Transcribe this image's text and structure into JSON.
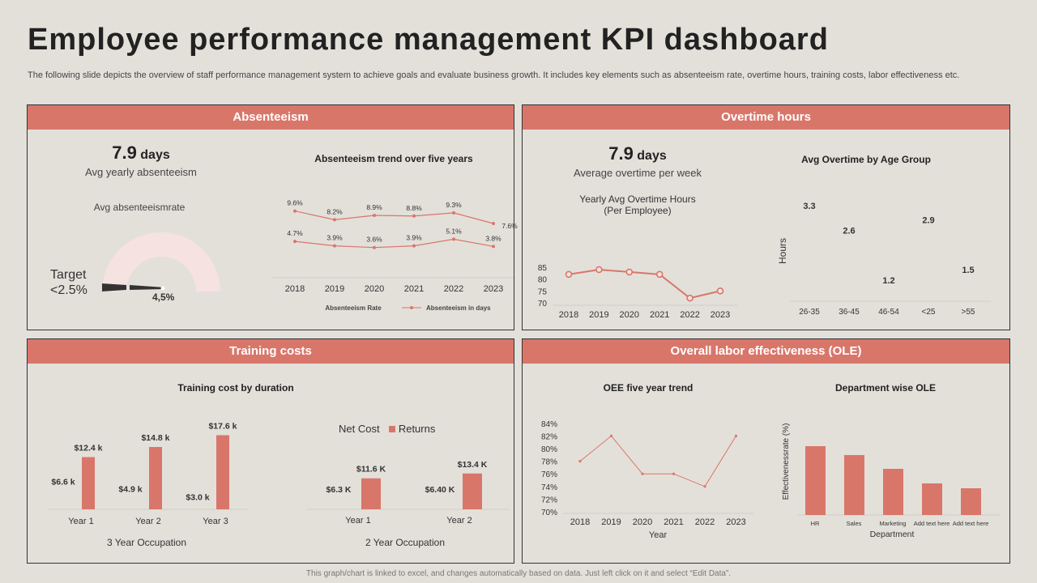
{
  "title": "Employee performance management KPI dashboard",
  "subtitle": "The following slide depicts the overview of staff performance management system to achieve goals and evaluate business growth. It includes key elements such as absenteeism rate, overtime hours, training costs, labor effectiveness etc.",
  "footer": "This graph/chart is linked to excel, and changes automatically based on data. Just left click on it and select “Edit Data”.",
  "colors": {
    "accent": "#d9766a",
    "background": "#e3e0da",
    "gauge_bg": "#f5e2e1",
    "needle": "#333333"
  },
  "absenteeism": {
    "header": "Absenteeism",
    "kpi_value": "7.9",
    "kpi_unit": "days",
    "kpi_label": "Avg yearly absenteeism",
    "gauge_label": "Avg absenteeismrate",
    "target_line1": "Target",
    "target_line2": "<2.5%",
    "gauge_value_label": "4,5%",
    "gauge_value": 4.5
  },
  "overtime": {
    "header": "Overtime hours",
    "kpi_value": "7.9",
    "kpi_unit": "days",
    "kpi_label": "Average  overtime  per week",
    "chart_title_line1": "Yearly Avg Overtime Hours",
    "chart_title_line2": "(Per Employee)"
  },
  "training": {
    "header": "Training costs",
    "legend_net": "Net Cost",
    "legend_returns": "Returns"
  },
  "ole": {
    "header": "Overall labor effectiveness (OLE)"
  },
  "chart_data": [
    {
      "id": "absenteeism_trend",
      "type": "line",
      "title": "Absenteeism trend over five years",
      "categories": [
        "2018",
        "2019",
        "2020",
        "2021",
        "2022",
        "2023"
      ],
      "series": [
        {
          "name": "Absenteeism Rate",
          "values": [
            4.7,
            3.9,
            3.6,
            3.9,
            5.1,
            3.8
          ],
          "labels": [
            "4.7%",
            "3.9%",
            "3.6%",
            "3.9%",
            "5.1%",
            "3.8%"
          ]
        },
        {
          "name": "Absenteeism in days",
          "values": [
            9.6,
            8.2,
            8.9,
            8.8,
            9.3,
            7.6
          ],
          "labels": [
            "9.6%",
            "8.2%",
            "8.9%",
            "8.8%",
            "9.3%",
            "7.6%"
          ]
        }
      ],
      "legend": "bottom"
    },
    {
      "id": "overtime_yearly",
      "type": "line",
      "title": "",
      "categories": [
        "2018",
        "2019",
        "2020",
        "2021",
        "2022",
        "2023"
      ],
      "values": [
        82,
        84,
        83,
        82,
        72,
        75
      ],
      "ylim": [
        70,
        85
      ],
      "yticks": [
        "70",
        "75",
        "80",
        "85"
      ]
    },
    {
      "id": "overtime_age",
      "type": "bar",
      "title": "Avg Overtime by Age Group",
      "ylabel": "Hours",
      "categories": [
        "26-35",
        "36-45",
        "46-54",
        "<25",
        ">55"
      ],
      "values": [
        3.3,
        2.6,
        1.2,
        2.9,
        1.5
      ],
      "labels": [
        "3.3",
        "2.6",
        "1.2",
        "2.9",
        "1.5"
      ]
    },
    {
      "id": "training_3yr",
      "type": "bar",
      "title": "Training cost by duration",
      "xlabel": "3 Year Occupation",
      "categories": [
        "Year 1",
        "Year 2",
        "Year 3"
      ],
      "series": [
        {
          "name": "Net Cost",
          "values": [
            6.6,
            4.9,
            3.0
          ],
          "labels": [
            "$6.6 k",
            "$4.9 k",
            "$3.0 k"
          ]
        },
        {
          "name": "Returns",
          "values": [
            12.4,
            14.8,
            17.6
          ],
          "labels": [
            "$12.4 k",
            "$14.8 k",
            "$17.6 k"
          ]
        }
      ]
    },
    {
      "id": "training_2yr",
      "type": "bar",
      "title": "",
      "xlabel": "2 Year Occupation",
      "categories": [
        "Year 1",
        "Year 2"
      ],
      "series": [
        {
          "name": "Net Cost",
          "values": [
            6.3,
            6.4
          ],
          "labels": [
            "$6.3 K",
            "$6.40 K"
          ]
        },
        {
          "name": "Returns",
          "values": [
            11.6,
            13.4
          ],
          "labels": [
            "$11.6 K",
            "$13.4 K"
          ]
        }
      ],
      "legend": "top"
    },
    {
      "id": "oee_trend",
      "type": "line",
      "title": "OEE five year trend",
      "xlabel": "Year",
      "categories": [
        "2018",
        "2019",
        "2020",
        "2021",
        "2022",
        "2023"
      ],
      "values": [
        78,
        82,
        76,
        76,
        74,
        82
      ],
      "ylim": [
        70,
        84
      ],
      "yticks": [
        "70%",
        "72%",
        "74%",
        "76%",
        "78%",
        "80%",
        "82%",
        "84%"
      ]
    },
    {
      "id": "dept_ole",
      "type": "bar",
      "title": "Department wise OLE",
      "xlabel": "Department",
      "ylabel": "Effectivenessrate (%)",
      "categories": [
        "HR",
        "Sales",
        "Marketing",
        "Add text here",
        "Add text here"
      ],
      "values": [
        85,
        74,
        57,
        39,
        33
      ]
    }
  ]
}
